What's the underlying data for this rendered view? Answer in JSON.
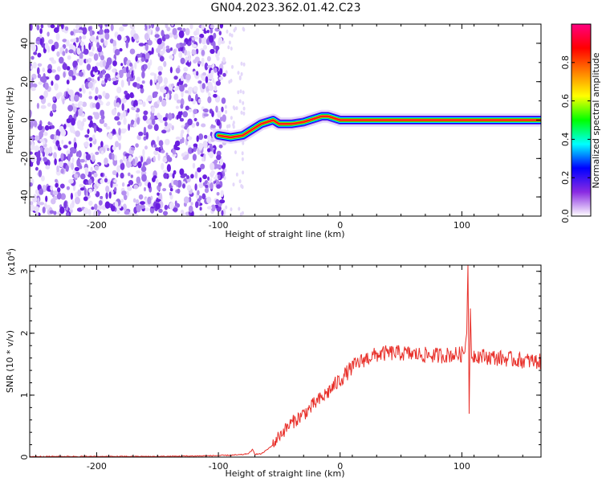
{
  "title": "GN04.2023.362.01.42.C23",
  "chart_data": [
    {
      "type": "heatmap",
      "xlabel": "Height of straight line (km)",
      "ylabel": "Frequency (Hz)",
      "xlim": [
        -255,
        165
      ],
      "ylim": [
        -50,
        50
      ],
      "x_ticks": [
        -200,
        -100,
        0,
        100
      ],
      "y_ticks": [
        -40,
        -20,
        0,
        20,
        40
      ],
      "colorbar": {
        "label": "Normalized spectral amplitude",
        "range": [
          0,
          1
        ],
        "ticks": [
          "0.0",
          "0.2",
          "0.4",
          "0.6",
          "0.8"
        ],
        "colormap": [
          "#ffffff",
          "#8a2be2",
          "#0000ff",
          "#00ffff",
          "#00ff00",
          "#ffff00",
          "#ff8000",
          "#ff0000",
          "#ff0080"
        ]
      },
      "noise_region_x": [
        -255,
        -95
      ],
      "signal_trace": {
        "x": [
          -100,
          -90,
          -80,
          -75,
          -70,
          -65,
          -60,
          -55,
          -50,
          -40,
          -30,
          -25,
          -20,
          -15,
          -10,
          -5,
          0,
          20,
          40,
          60,
          80,
          100,
          120,
          140,
          165
        ],
        "y": [
          -8,
          -9,
          -8,
          -6,
          -4,
          -2,
          -1,
          0,
          -2,
          -2,
          -1,
          0,
          1,
          2,
          2,
          1,
          0,
          0,
          0,
          0,
          0,
          0,
          0,
          0,
          0
        ]
      }
    },
    {
      "type": "line",
      "xlabel": "Height of straight line (km)",
      "ylabel": "SNR (10 * v/v)",
      "y_multiplier": "(x10",
      "y_multiplier_exp": "4",
      "xlim": [
        -255,
        165
      ],
      "ylim": [
        0,
        3.1
      ],
      "x_ticks": [
        -200,
        -100,
        0,
        100
      ],
      "y_ticks": [
        0,
        1,
        2,
        3
      ],
      "color": "#e8302a",
      "series": [
        {
          "x": [
            -255,
            -200,
            -150,
            -110,
            -90,
            -80,
            -75,
            -72,
            -70,
            -65,
            -60,
            -55,
            -50,
            -45,
            -40,
            -35,
            -30,
            -25,
            -20,
            -15,
            -10,
            -5,
            0,
            5,
            10,
            15,
            20,
            25,
            30,
            35,
            40,
            50,
            60,
            70,
            80,
            90,
            100,
            102,
            104,
            105,
            106,
            107,
            108,
            110,
            120,
            130,
            140,
            150,
            165
          ],
          "y": [
            0.01,
            0.01,
            0.01,
            0.02,
            0.03,
            0.04,
            0.06,
            0.12,
            0.05,
            0.05,
            0.12,
            0.2,
            0.35,
            0.45,
            0.55,
            0.62,
            0.7,
            0.78,
            0.88,
            0.95,
            1.05,
            1.15,
            1.25,
            1.35,
            1.45,
            1.52,
            1.58,
            1.62,
            1.65,
            1.67,
            1.68,
            1.68,
            1.66,
            1.65,
            1.64,
            1.65,
            1.66,
            1.7,
            2.0,
            3.1,
            0.7,
            2.4,
            1.6,
            1.65,
            1.62,
            1.6,
            1.58,
            1.56,
            1.54
          ]
        }
      ]
    }
  ]
}
